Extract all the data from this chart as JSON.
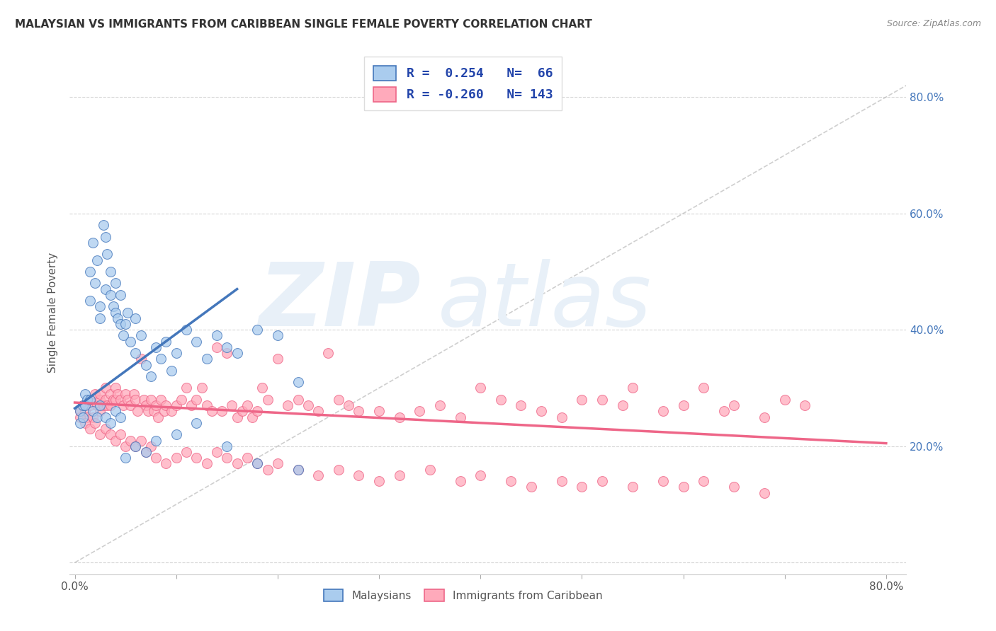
{
  "title": "MALAYSIAN VS IMMIGRANTS FROM CARIBBEAN SINGLE FEMALE POVERTY CORRELATION CHART",
  "source": "Source: ZipAtlas.com",
  "ylabel": "Single Female Poverty",
  "legend_label1": "Malaysians",
  "legend_label2": "Immigrants from Caribbean",
  "r1": 0.254,
  "n1": 66,
  "r2": -0.26,
  "n2": 143,
  "xlim": [
    -0.005,
    0.82
  ],
  "ylim": [
    -0.02,
    0.88
  ],
  "blue_color": "#4477BB",
  "pink_color": "#EE6688",
  "blue_fill": "#AACCEE",
  "pink_fill": "#FFAABB",
  "blue_scatter_x": [
    0.005,
    0.008,
    0.01,
    0.012,
    0.015,
    0.015,
    0.018,
    0.02,
    0.022,
    0.025,
    0.025,
    0.028,
    0.03,
    0.03,
    0.032,
    0.035,
    0.035,
    0.038,
    0.04,
    0.04,
    0.042,
    0.045,
    0.045,
    0.048,
    0.05,
    0.052,
    0.055,
    0.06,
    0.06,
    0.065,
    0.07,
    0.075,
    0.08,
    0.085,
    0.09,
    0.095,
    0.1,
    0.11,
    0.12,
    0.13,
    0.14,
    0.15,
    0.16,
    0.18,
    0.2,
    0.22,
    0.005,
    0.008,
    0.01,
    0.015,
    0.018,
    0.022,
    0.025,
    0.03,
    0.035,
    0.04,
    0.045,
    0.05,
    0.06,
    0.07,
    0.08,
    0.1,
    0.12,
    0.15,
    0.18,
    0.22
  ],
  "blue_scatter_y": [
    0.26,
    0.27,
    0.29,
    0.28,
    0.5,
    0.45,
    0.55,
    0.48,
    0.52,
    0.44,
    0.42,
    0.58,
    0.56,
    0.47,
    0.53,
    0.46,
    0.5,
    0.44,
    0.43,
    0.48,
    0.42,
    0.41,
    0.46,
    0.39,
    0.41,
    0.43,
    0.38,
    0.36,
    0.42,
    0.39,
    0.34,
    0.32,
    0.37,
    0.35,
    0.38,
    0.33,
    0.36,
    0.4,
    0.38,
    0.35,
    0.39,
    0.37,
    0.36,
    0.4,
    0.39,
    0.31,
    0.24,
    0.25,
    0.27,
    0.28,
    0.26,
    0.25,
    0.27,
    0.25,
    0.24,
    0.26,
    0.25,
    0.18,
    0.2,
    0.19,
    0.21,
    0.22,
    0.24,
    0.2,
    0.17,
    0.16
  ],
  "pink_scatter_x": [
    0.005,
    0.008,
    0.01,
    0.012,
    0.015,
    0.015,
    0.018,
    0.02,
    0.022,
    0.025,
    0.025,
    0.025,
    0.028,
    0.03,
    0.03,
    0.032,
    0.035,
    0.035,
    0.038,
    0.04,
    0.04,
    0.042,
    0.045,
    0.048,
    0.05,
    0.052,
    0.055,
    0.058,
    0.06,
    0.062,
    0.065,
    0.068,
    0.07,
    0.072,
    0.075,
    0.078,
    0.08,
    0.082,
    0.085,
    0.088,
    0.09,
    0.095,
    0.1,
    0.105,
    0.11,
    0.115,
    0.12,
    0.125,
    0.13,
    0.135,
    0.14,
    0.145,
    0.15,
    0.155,
    0.16,
    0.165,
    0.17,
    0.175,
    0.18,
    0.185,
    0.19,
    0.2,
    0.21,
    0.22,
    0.23,
    0.24,
    0.25,
    0.26,
    0.27,
    0.28,
    0.3,
    0.32,
    0.34,
    0.36,
    0.38,
    0.4,
    0.42,
    0.44,
    0.46,
    0.48,
    0.5,
    0.52,
    0.54,
    0.55,
    0.58,
    0.6,
    0.62,
    0.64,
    0.65,
    0.68,
    0.7,
    0.72,
    0.005,
    0.01,
    0.015,
    0.02,
    0.025,
    0.03,
    0.035,
    0.04,
    0.045,
    0.05,
    0.055,
    0.06,
    0.065,
    0.07,
    0.075,
    0.08,
    0.09,
    0.1,
    0.11,
    0.12,
    0.13,
    0.14,
    0.15,
    0.16,
    0.17,
    0.18,
    0.19,
    0.2,
    0.22,
    0.24,
    0.26,
    0.28,
    0.3,
    0.32,
    0.35,
    0.38,
    0.4,
    0.43,
    0.45,
    0.48,
    0.5,
    0.52,
    0.55,
    0.58,
    0.6,
    0.62,
    0.65,
    0.68
  ],
  "pink_scatter_y": [
    0.26,
    0.27,
    0.26,
    0.25,
    0.27,
    0.28,
    0.25,
    0.29,
    0.27,
    0.28,
    0.26,
    0.29,
    0.27,
    0.3,
    0.28,
    0.27,
    0.29,
    0.27,
    0.28,
    0.3,
    0.28,
    0.29,
    0.28,
    0.27,
    0.29,
    0.28,
    0.27,
    0.29,
    0.28,
    0.26,
    0.35,
    0.28,
    0.27,
    0.26,
    0.28,
    0.26,
    0.27,
    0.25,
    0.28,
    0.26,
    0.27,
    0.26,
    0.27,
    0.28,
    0.3,
    0.27,
    0.28,
    0.3,
    0.27,
    0.26,
    0.37,
    0.26,
    0.36,
    0.27,
    0.25,
    0.26,
    0.27,
    0.25,
    0.26,
    0.3,
    0.28,
    0.35,
    0.27,
    0.28,
    0.27,
    0.26,
    0.36,
    0.28,
    0.27,
    0.26,
    0.26,
    0.25,
    0.26,
    0.27,
    0.25,
    0.3,
    0.28,
    0.27,
    0.26,
    0.25,
    0.28,
    0.28,
    0.27,
    0.3,
    0.26,
    0.27,
    0.3,
    0.26,
    0.27,
    0.25,
    0.28,
    0.27,
    0.25,
    0.24,
    0.23,
    0.24,
    0.22,
    0.23,
    0.22,
    0.21,
    0.22,
    0.2,
    0.21,
    0.2,
    0.21,
    0.19,
    0.2,
    0.18,
    0.17,
    0.18,
    0.19,
    0.18,
    0.17,
    0.19,
    0.18,
    0.17,
    0.18,
    0.17,
    0.16,
    0.17,
    0.16,
    0.15,
    0.16,
    0.15,
    0.14,
    0.15,
    0.16,
    0.14,
    0.15,
    0.14,
    0.13,
    0.14,
    0.13,
    0.14,
    0.13,
    0.14,
    0.13,
    0.14,
    0.13,
    0.12
  ],
  "blue_line_x": [
    0.0,
    0.16
  ],
  "blue_line_y": [
    0.265,
    0.47
  ],
  "pink_line_x": [
    0.0,
    0.8
  ],
  "pink_line_y": [
    0.275,
    0.205
  ],
  "dashed_line_x": [
    0.0,
    0.82
  ],
  "dashed_line_y": [
    0.0,
    0.82
  ],
  "grid_color": "#CCCCCC",
  "yticks": [
    0.0,
    0.2,
    0.4,
    0.6,
    0.8
  ],
  "ytick_labels_right": [
    "20.0%",
    "40.0%",
    "60.0%",
    "80.0%"
  ],
  "xtick_left": "0.0%",
  "xtick_right": "80.0%"
}
